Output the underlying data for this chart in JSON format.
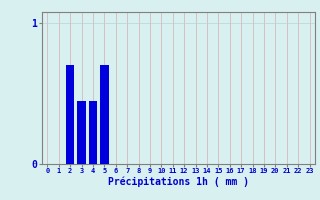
{
  "categories": [
    0,
    1,
    2,
    3,
    4,
    5,
    6,
    7,
    8,
    9,
    10,
    11,
    12,
    13,
    14,
    15,
    16,
    17,
    18,
    19,
    20,
    21,
    22,
    23
  ],
  "values": [
    0,
    0,
    0.7,
    0.45,
    0.45,
    0.7,
    0,
    0,
    0,
    0,
    0,
    0,
    0,
    0,
    0,
    0,
    0,
    0,
    0,
    0,
    0,
    0,
    0,
    0
  ],
  "bar_color": "#0000dd",
  "background_color": "#d8f0f0",
  "grid_color_x": "#d4b0b0",
  "grid_color_y": "#b8d4d8",
  "xlabel": "Précipitations 1h ( mm )",
  "xlabel_color": "#0000cc",
  "ylim": [
    0,
    1.08
  ],
  "xlim": [
    -0.5,
    23.5
  ],
  "yticks": [
    0,
    1
  ],
  "xticks": [
    0,
    1,
    2,
    3,
    4,
    5,
    6,
    7,
    8,
    9,
    10,
    11,
    12,
    13,
    14,
    15,
    16,
    17,
    18,
    19,
    20,
    21,
    22,
    23
  ],
  "tick_color": "#0000cc",
  "spine_color": "#808080",
  "bar_width": 0.75
}
